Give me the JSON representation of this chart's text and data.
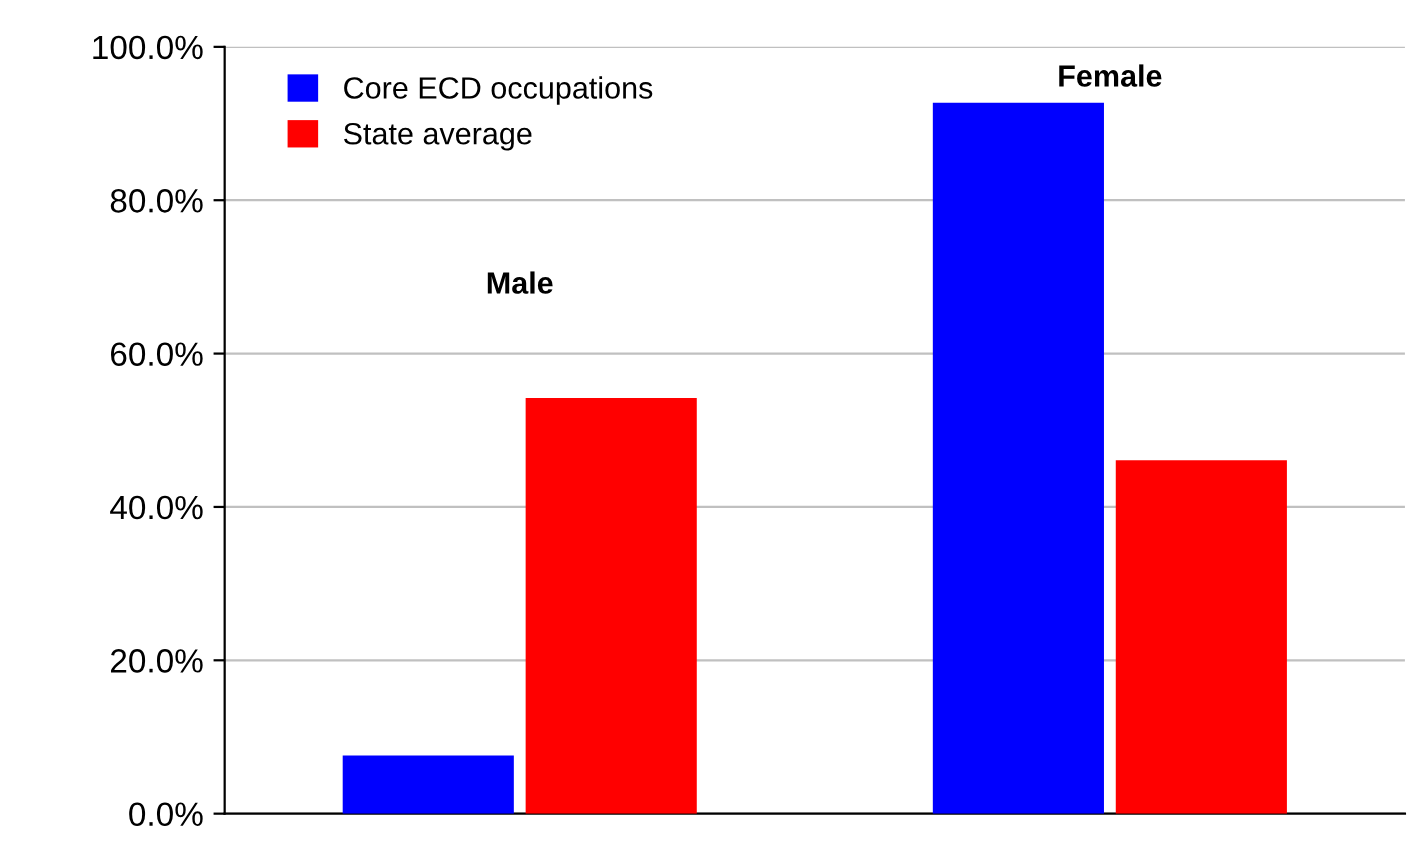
{
  "chart_data": {
    "type": "bar",
    "categories": [
      "Male",
      "Female"
    ],
    "series": [
      {
        "name": "Core ECD occupations",
        "color": "#0000ff",
        "values": [
          7.6,
          92.7
        ]
      },
      {
        "name": "State average",
        "color": "#ff0000",
        "values": [
          54.2,
          46.1
        ]
      }
    ],
    "ylim": [
      0,
      100
    ],
    "yticks": [
      {
        "value": 0,
        "label": "0.0%"
      },
      {
        "value": 20,
        "label": "20.0%"
      },
      {
        "value": 40,
        "label": "40.0%"
      },
      {
        "value": 60,
        "label": "60.0%"
      },
      {
        "value": 80,
        "label": "80.0%"
      },
      {
        "value": 100,
        "label": "100.0%"
      }
    ],
    "grid": "y",
    "legend": "top left"
  }
}
